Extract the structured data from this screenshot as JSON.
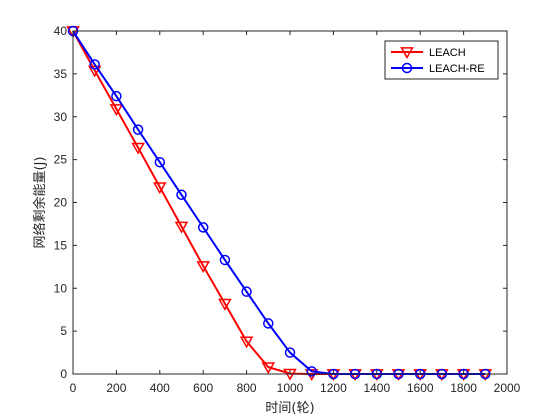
{
  "chart_data": {
    "type": "line",
    "title": "",
    "xlabel": "时间(轮)",
    "ylabel": "网络剩余能量(J)",
    "xlim": [
      0,
      2000
    ],
    "ylim": [
      0,
      40
    ],
    "xticks": [
      0,
      200,
      400,
      600,
      800,
      1000,
      1200,
      1400,
      1600,
      1800,
      2000
    ],
    "yticks": [
      0,
      5,
      10,
      15,
      20,
      25,
      30,
      35,
      40
    ],
    "grid": false,
    "legend_position": "top-right",
    "x": [
      0,
      100,
      200,
      300,
      400,
      500,
      600,
      700,
      800,
      900,
      1000,
      1100,
      1200,
      1300,
      1400,
      1500,
      1600,
      1700,
      1800,
      1900
    ],
    "series": [
      {
        "name": "LEACH",
        "color": "#ff0000",
        "marker": "triangle-down",
        "values": [
          40,
          35.4,
          30.9,
          26.4,
          21.8,
          17.2,
          12.6,
          8.2,
          3.8,
          0.8,
          0.05,
          0,
          0,
          0,
          0,
          0,
          0,
          0,
          0,
          0
        ]
      },
      {
        "name": "LEACH-RE",
        "color": "#0000ff",
        "marker": "circle",
        "values": [
          40,
          36.1,
          32.4,
          28.5,
          24.7,
          20.9,
          17.1,
          13.3,
          9.6,
          5.9,
          2.5,
          0.3,
          0,
          0,
          0,
          0,
          0,
          0,
          0,
          0
        ]
      }
    ]
  }
}
